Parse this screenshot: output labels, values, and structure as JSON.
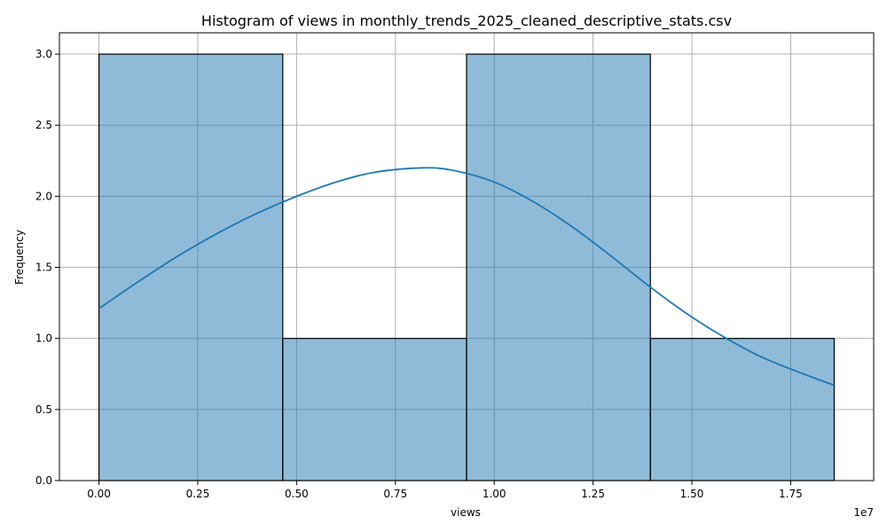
{
  "chart_data": {
    "type": "bar",
    "subtype": "histogram",
    "title": "Histogram of views in monthly_trends_2025_cleaned_descriptive_stats.csv",
    "xlabel": "views",
    "ylabel": "Frequency",
    "x_offset_label": "1e7",
    "x_scale_factor": 10000000,
    "xlim": [
      -1000000,
      19600000
    ],
    "ylim": [
      0,
      3.15
    ],
    "grid": true,
    "bins": [
      {
        "start": 0,
        "end": 4650000,
        "count": 3
      },
      {
        "start": 4650000,
        "end": 9300000,
        "count": 1
      },
      {
        "start": 9300000,
        "end": 13950000,
        "count": 3
      },
      {
        "start": 13950000,
        "end": 18600000,
        "count": 1
      }
    ],
    "x_ticks": [
      {
        "value": 0,
        "label": "0.00"
      },
      {
        "value": 2500000,
        "label": "0.25"
      },
      {
        "value": 5000000,
        "label": "0.50"
      },
      {
        "value": 7500000,
        "label": "0.75"
      },
      {
        "value": 10000000,
        "label": "1.00"
      },
      {
        "value": 12500000,
        "label": "1.25"
      },
      {
        "value": 15000000,
        "label": "1.50"
      },
      {
        "value": 17500000,
        "label": "1.75"
      }
    ],
    "y_ticks": [
      {
        "value": 0,
        "label": "0.0"
      },
      {
        "value": 0.5,
        "label": "0.5"
      },
      {
        "value": 1.0,
        "label": "1.0"
      },
      {
        "value": 1.5,
        "label": "1.5"
      },
      {
        "value": 2.0,
        "label": "2.0"
      },
      {
        "value": 2.5,
        "label": "2.5"
      },
      {
        "value": 3.0,
        "label": "3.0"
      }
    ],
    "kde": {
      "x": [
        0,
        1000000,
        2000000,
        3000000,
        4000000,
        5000000,
        6000000,
        7000000,
        8200000,
        9000000,
        10000000,
        11000000,
        12000000,
        13000000,
        14000000,
        15000000,
        16000000,
        17000000,
        18600000
      ],
      "y": [
        1.21,
        1.4,
        1.58,
        1.74,
        1.88,
        2.0,
        2.1,
        2.17,
        2.2,
        2.18,
        2.1,
        1.96,
        1.78,
        1.57,
        1.35,
        1.15,
        0.98,
        0.84,
        0.67
      ]
    },
    "colors": {
      "bar": "#1f77b4",
      "kde": "#1f77b4"
    }
  }
}
